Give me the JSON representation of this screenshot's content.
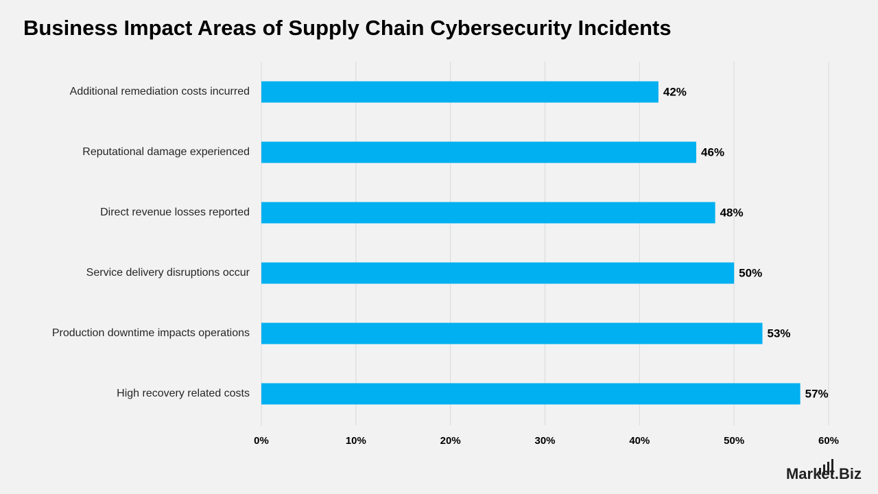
{
  "chart_data": {
    "type": "bar",
    "orientation": "horizontal",
    "title": "Business Impact Areas of Supply Chain Cybersecurity Incidents",
    "categories": [
      "Additional remediation costs incurred",
      "Reputational damage experienced",
      "Direct revenue losses reported",
      "Service delivery disruptions occur",
      "Production downtime impacts operations",
      "High recovery related costs"
    ],
    "values": [
      42,
      46,
      48,
      50,
      53,
      57
    ],
    "value_labels": [
      "42%",
      "46%",
      "48%",
      "50%",
      "53%",
      "57%"
    ],
    "color": "#00b0f0",
    "xlim": [
      0,
      60
    ],
    "xticks": [
      {
        "value": 0,
        "label": "0%"
      },
      {
        "value": 10,
        "label": "10%"
      },
      {
        "value": 20,
        "label": "20%"
      },
      {
        "value": 30,
        "label": "30%"
      },
      {
        "value": 40,
        "label": "40%"
      },
      {
        "value": 50,
        "label": "50%"
      },
      {
        "value": 60,
        "label": "60%"
      }
    ],
    "grid": true
  },
  "branding": "Market.Biz"
}
